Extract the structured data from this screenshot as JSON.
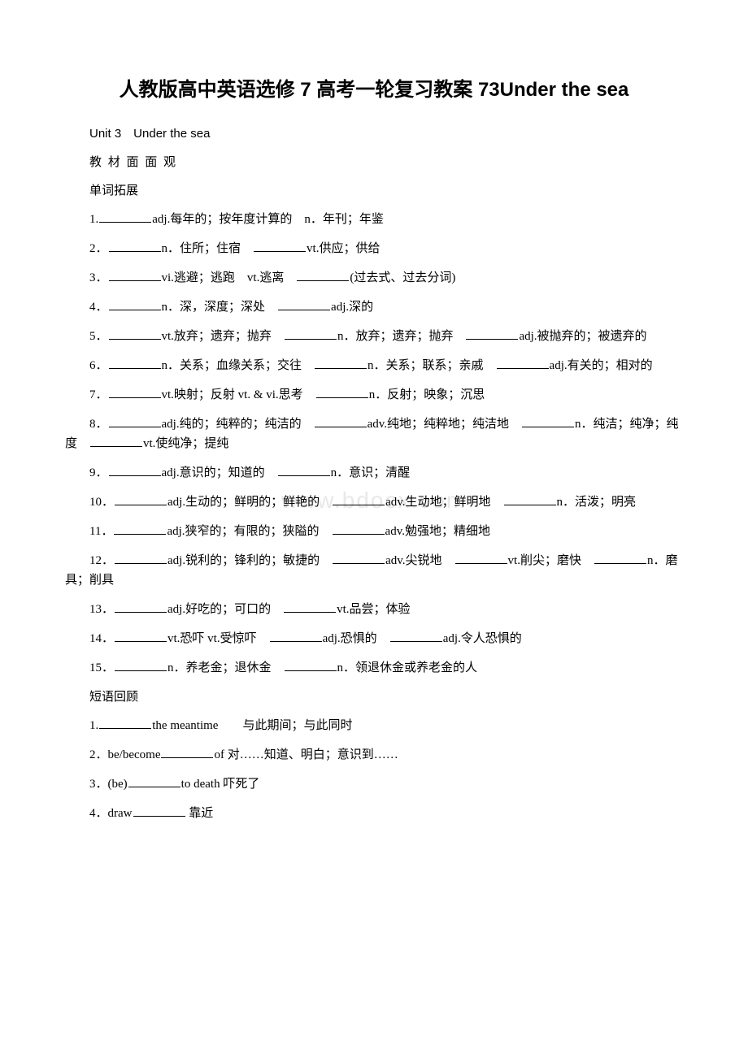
{
  "title": "人教版高中英语选修 7 高考一轮复习教案 73Under the sea",
  "unit_line": "Unit 3　Under the sea",
  "section_label": "教 材 面 面 观",
  "subsection1": "单词拓展",
  "subsection2": "短语回顾",
  "watermark_text": "www.bdocx.com",
  "vocab": [
    {
      "num": "1.",
      "parts": [
        "adj.每年的；按年度计算的　n．年刊；年鉴"
      ]
    },
    {
      "num": "2．",
      "parts": [
        "n．住所；住宿　",
        "vt.供应；供给"
      ]
    },
    {
      "num": "3．",
      "parts": [
        "vi.逃避；逃跑　vt.逃离　",
        "(过去式、过去分词)"
      ]
    },
    {
      "num": "4．",
      "parts": [
        "n．深，深度；深处　",
        "adj.深的"
      ]
    },
    {
      "num": "5．",
      "parts": [
        "vt.放弃；遗弃；抛弃　",
        "n．放弃；遗弃；抛弃　",
        "adj.被抛弃的；被遗弃的"
      ]
    },
    {
      "num": "6．",
      "parts": [
        "n．关系；血缘关系；交往　",
        "n．关系；联系；亲戚　",
        "adj.有关的；相对的"
      ]
    },
    {
      "num": "7．",
      "parts": [
        "vt.映射；反射 vt. & vi.思考　",
        "n．反射；映象；沉思"
      ]
    },
    {
      "num": "8．",
      "parts": [
        "adj.纯的；纯粹的；纯洁的　",
        "adv.纯地；纯粹地；纯洁地　",
        "n．纯洁；纯净；纯度　",
        "vt.使纯净；提纯"
      ]
    },
    {
      "num": "9．",
      "parts": [
        "adj.意识的；知道的　",
        "n．意识；清醒"
      ]
    },
    {
      "num": "10．",
      "parts": [
        "adj.生动的；鲜明的；鲜艳的　",
        "adv.生动地；鲜明地　",
        "n．活泼；明亮"
      ]
    },
    {
      "num": "11．",
      "parts": [
        "adj.狭窄的；有限的；狭隘的　",
        "adv.勉强地；精细地"
      ]
    },
    {
      "num": "12．",
      "parts": [
        "adj.锐利的；锋利的；敏捷的　",
        "adv.尖锐地　",
        "vt.削尖；磨快　",
        "n．磨具；削具"
      ]
    },
    {
      "num": "13．",
      "parts": [
        "adj.好吃的；可口的　",
        "vt.品尝；体验"
      ]
    },
    {
      "num": "14．",
      "parts": [
        "vt.恐吓 vt.受惊吓　",
        "adj.恐惧的　",
        "adj.令人恐惧的"
      ]
    },
    {
      "num": "15．",
      "parts": [
        "n．养老金；退休金　",
        "n．领退休金或养老金的人"
      ]
    }
  ],
  "phrases": [
    {
      "num": "1.",
      "before": "",
      "after": "the meantime　　与此期间；与此同时"
    },
    {
      "num": "2．",
      "before": "be/become",
      "after": "of 对……知道、明白；意识到……"
    },
    {
      "num": "3．",
      "before": "(be)",
      "after": "to death 吓死了"
    },
    {
      "num": "4．",
      "before": "draw",
      "after": " 靠近"
    }
  ]
}
